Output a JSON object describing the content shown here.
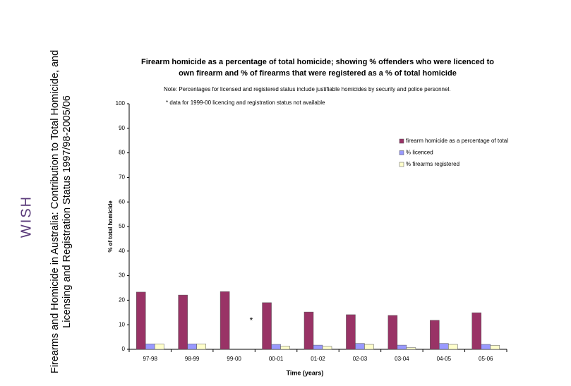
{
  "slide_title": "Firearms and Homicide in Australia: Contribution to Total Homicide, and Licensing and Registration Status 1997/98-2005/06",
  "logo": "WISH",
  "chart_data": {
    "type": "bar",
    "title": "Firearm homicide as a percentage of total homicide; showing % offenders who were licenced to own firearm and % of firearms that were registered as a % of total homicide",
    "note": "Note: Percentages for licensed and registered status include justifiable homicides by security and police personnel.",
    "footnote": "* data for 1999-00 licencing and registration status not available",
    "annotation": "*",
    "x_label": "Time (years)",
    "y_label": "% of total homicide",
    "categories": [
      "97-98",
      "98-99",
      "99-00",
      "00-01",
      "01-02",
      "02-03",
      "03-04",
      "04-05",
      "05-06"
    ],
    "series": [
      {
        "name": "firearm homicide as a percentage of total",
        "color": "#993366",
        "values": [
          23.3,
          22.1,
          23.5,
          19.0,
          15.2,
          14.1,
          13.8,
          11.8,
          14.9
        ]
      },
      {
        "name": "% licenced",
        "color": "#9999ff",
        "values": [
          2.2,
          2.2,
          null,
          2.0,
          1.7,
          2.4,
          1.7,
          2.4,
          2.0
        ]
      },
      {
        "name": "% firearms registered",
        "color": "#ffffcc",
        "values": [
          2.2,
          2.2,
          null,
          1.3,
          1.2,
          2.0,
          0.7,
          2.0,
          1.6
        ]
      }
    ],
    "ylim": [
      0,
      100
    ],
    "yticks": [
      0,
      10,
      20,
      30,
      40,
      50,
      60,
      70,
      80,
      90,
      100
    ],
    "grid": false,
    "legend": "right"
  }
}
